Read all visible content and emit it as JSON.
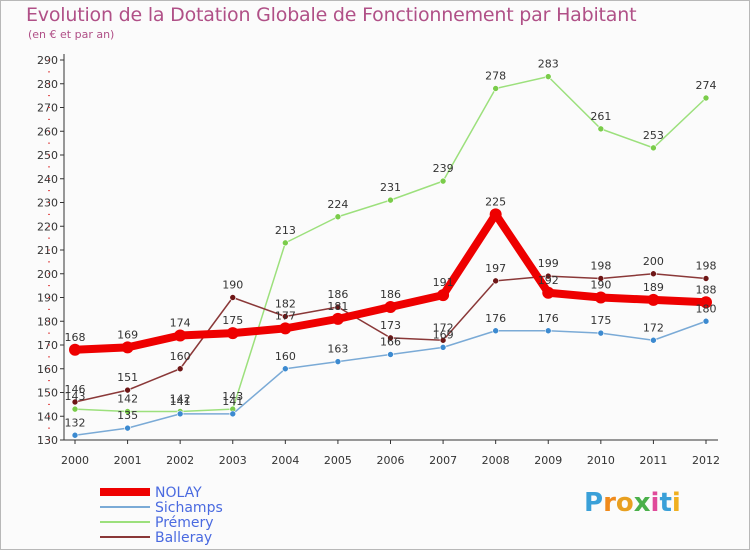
{
  "header": {
    "title": "Evolution de la Dotation Globale de Fonctionnement par Habitant",
    "subtitle": "(en € et par an)"
  },
  "logo": {
    "letters": [
      "P",
      "r",
      "o",
      "x",
      "i",
      "t",
      "i"
    ],
    "colors": [
      "#3aa0d8",
      "#f08a1c",
      "#e8a020",
      "#4ab04a",
      "#e04a9a",
      "#3aa0d8",
      "#f0b020"
    ]
  },
  "chart_data": {
    "type": "line",
    "title": "Evolution de la Dotation Globale de Fonctionnement par Habitant",
    "subtitle": "(en € et par an)",
    "x": [
      "2000",
      "2001",
      "2002",
      "2003",
      "2004",
      "2005",
      "2006",
      "2007",
      "2008",
      "2009",
      "2010",
      "2011",
      "2012"
    ],
    "ylim": [
      130,
      290
    ],
    "yticks": [
      130,
      140,
      150,
      160,
      170,
      180,
      190,
      200,
      210,
      220,
      230,
      240,
      250,
      260,
      270,
      280,
      290
    ],
    "grid": false,
    "legend_position": "bottom-left",
    "series": [
      {
        "name": "NOLAY",
        "color": "#ee0000",
        "marker": "#ee0000",
        "width": 8,
        "values": [
          168,
          169,
          174,
          175,
          177,
          181,
          186,
          191,
          225,
          192,
          190,
          189,
          188
        ],
        "labels": [
          "168",
          "169",
          "174",
          "175",
          "177",
          "181",
          "186",
          "191",
          "225",
          "192",
          "190",
          "189",
          "188"
        ]
      },
      {
        "name": "Sichamps",
        "color": "#7aaad6",
        "marker": "#3c8ad0",
        "width": 1.5,
        "values": [
          132,
          135,
          141,
          141,
          160,
          163,
          166,
          169,
          176,
          176,
          175,
          172,
          180
        ],
        "labels": [
          "132",
          "135",
          "141",
          "141",
          "160",
          "163",
          "166",
          "169",
          "176",
          "176",
          "175",
          "172",
          "180"
        ]
      },
      {
        "name": "Prémery",
        "color": "#9ce07c",
        "marker": "#7acc4a",
        "width": 1.5,
        "values": [
          143,
          142,
          142,
          143,
          213,
          224,
          231,
          239,
          278,
          283,
          261,
          253,
          274
        ],
        "labels": [
          "143",
          "142",
          "142",
          "143",
          "213",
          "224",
          "231",
          "239",
          "278",
          "283",
          "261",
          "253",
          "274"
        ]
      },
      {
        "name": "Balleray",
        "color": "#8a3838",
        "marker": "#6e1616",
        "width": 1.5,
        "values": [
          146,
          151,
          160,
          190,
          182,
          186,
          173,
          172,
          197,
          199,
          198,
          200,
          198
        ],
        "labels": [
          "146",
          "151",
          "160",
          "190",
          "182",
          "186",
          "173",
          "172",
          "197",
          "199",
          "198",
          "200",
          "198"
        ]
      }
    ]
  }
}
